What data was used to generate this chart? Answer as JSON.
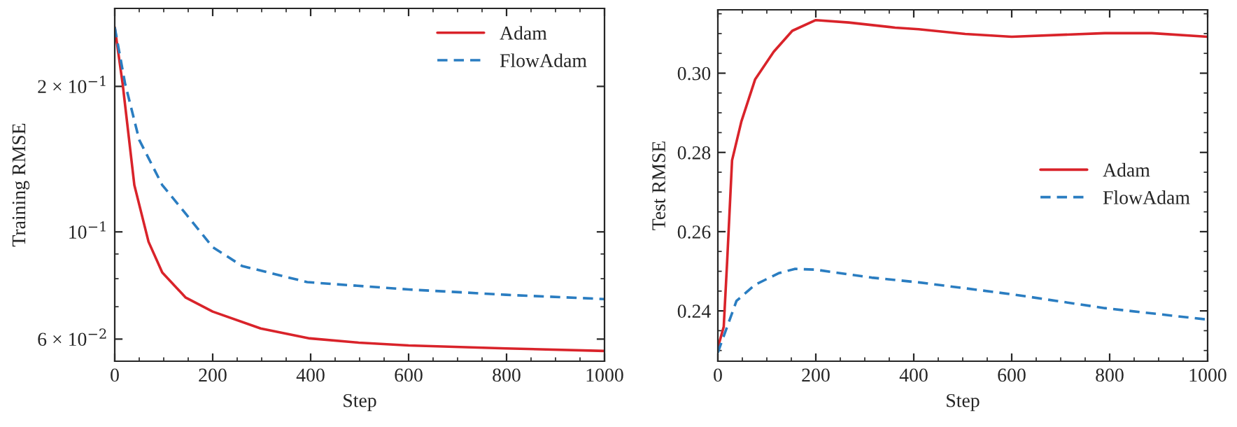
{
  "chart_data": [
    {
      "type": "line",
      "xlabel": "Step",
      "ylabel": "Training RMSE",
      "log": "y",
      "xlim": [
        0,
        1000
      ],
      "ylim": [
        0.054,
        0.29
      ],
      "xticks": [
        0,
        200,
        400,
        600,
        800,
        1000
      ],
      "yticks": [
        {
          "value": 0.06,
          "label": "6 × 10$^{−2}$"
        },
        {
          "value": 0.1,
          "label": "10$^{−1}$"
        },
        {
          "value": 0.2,
          "label": "2 × 10$^{−1}$"
        }
      ],
      "legend": "top right",
      "grid": false,
      "series": [
        {
          "name": "Adam",
          "color": "#d9232a",
          "line_style": "solid",
          "x": [
            0,
            16,
            40,
            69,
            97,
            145,
            200,
            298,
            398,
            498,
            600,
            799,
            1000
          ],
          "values": [
            0.265,
            0.203,
            0.125,
            0.0954,
            0.0824,
            0.0731,
            0.0684,
            0.0631,
            0.0602,
            0.059,
            0.0582,
            0.0574,
            0.0567
          ]
        },
        {
          "name": "FlowAdam",
          "color": "#2a7dc1",
          "line_style": "dashed",
          "x": [
            0,
            21,
            50,
            97,
            145,
            200,
            260,
            393,
            600,
            799,
            1000
          ],
          "values": [
            0.265,
            0.203,
            0.155,
            0.125,
            0.109,
            0.093,
            0.085,
            0.0787,
            0.076,
            0.0741,
            0.0726
          ]
        }
      ]
    },
    {
      "type": "line",
      "xlabel": "Step",
      "ylabel": "Test RMSE",
      "xlim": [
        0,
        1000
      ],
      "ylim": [
        0.2273,
        0.316
      ],
      "xticks": [
        0,
        200,
        400,
        600,
        800,
        1000
      ],
      "yticks": [
        0.24,
        0.26,
        0.28,
        {
          "value": 0.3,
          "label": "0.30"
        }
      ],
      "legend": "right",
      "grid": false,
      "series": [
        {
          "name": "Adam",
          "color": "#d9232a",
          "line_style": "solid",
          "x": [
            0,
            12,
            19,
            29,
            48,
            76,
            114,
            152,
            200,
            267,
            362,
            410,
            505,
            600,
            790,
            886,
            1000
          ],
          "values": [
            0.2307,
            0.236,
            0.2525,
            0.278,
            0.2878,
            0.2984,
            0.3054,
            0.3107,
            0.3134,
            0.3128,
            0.3115,
            0.3111,
            0.3099,
            0.3092,
            0.3101,
            0.3101,
            0.3092
          ]
        },
        {
          "name": "FlowAdam",
          "color": "#2a7dc1",
          "line_style": "dashed",
          "x": [
            0,
            19,
            38,
            76,
            124,
            157,
            200,
            314,
            410,
            600,
            790,
            1000
          ],
          "values": [
            0.2295,
            0.236,
            0.2425,
            0.2466,
            0.2495,
            0.2506,
            0.2504,
            0.2484,
            0.2472,
            0.2442,
            0.2407,
            0.2378
          ]
        }
      ]
    }
  ]
}
